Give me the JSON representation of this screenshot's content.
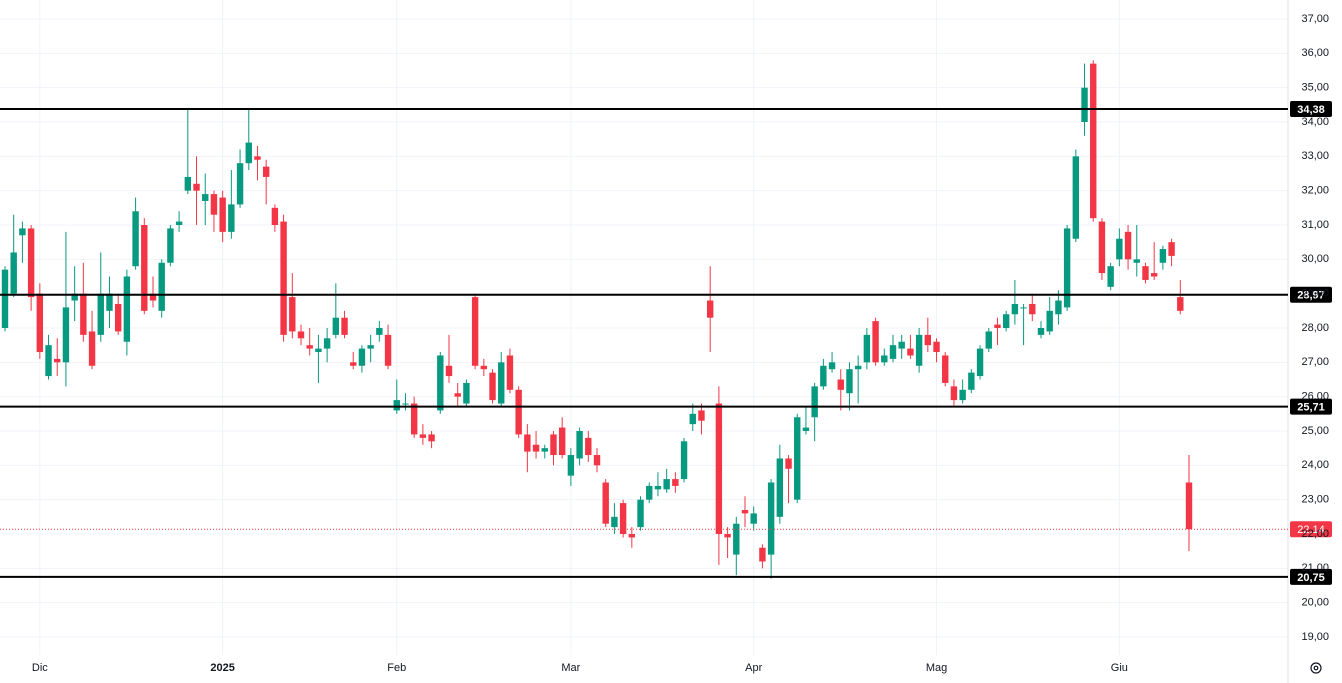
{
  "chart_data": {
    "type": "candlestick",
    "categories": [
      null,
      null,
      null,
      null,
      "Dic",
      null,
      null,
      null,
      null,
      null,
      null,
      null,
      null,
      null,
      null,
      null,
      null,
      null,
      null,
      null,
      null,
      null,
      null,
      null,
      null,
      "2025",
      null,
      null,
      null,
      null,
      null,
      null,
      null,
      null,
      null,
      null,
      null,
      null,
      null,
      null,
      null,
      null,
      null,
      null,
      null,
      "Feb",
      null,
      null,
      null,
      null,
      null,
      null,
      null,
      null,
      null,
      null,
      null,
      null,
      null,
      null,
      null,
      null,
      null,
      null,
      null,
      "Mar",
      null,
      null,
      null,
      null,
      null,
      null,
      null,
      null,
      null,
      null,
      null,
      null,
      null,
      null,
      null,
      null,
      null,
      null,
      null,
      null,
      "Apr",
      null,
      null,
      null,
      null,
      null,
      null,
      null,
      null,
      null,
      null,
      null,
      null,
      null,
      null,
      null,
      null,
      null,
      null,
      null,
      null,
      "Mag",
      null,
      null,
      null,
      null,
      null,
      null,
      null,
      null,
      null,
      null,
      null,
      null,
      null,
      null,
      null,
      null,
      null,
      null,
      null,
      null,
      "Giu",
      null,
      null,
      null,
      null,
      null,
      null,
      null,
      null
    ],
    "open": [
      28.0,
      29.0,
      30.7,
      30.9,
      29.0,
      26.6,
      27.1,
      27.0,
      28.8,
      29.0,
      27.9,
      27.8,
      28.5,
      28.7,
      27.6,
      29.8,
      31.0,
      29.0,
      28.5,
      29.9,
      31.0,
      32.0,
      32.2,
      31.7,
      31.9,
      31.8,
      30.8,
      31.6,
      32.8,
      33.0,
      32.7,
      31.5,
      31.1,
      28.9,
      27.9,
      27.5,
      27.3,
      27.4,
      27.8,
      28.3,
      27.0,
      26.9,
      27.4,
      27.8,
      27.8,
      25.6,
      25.8,
      25.8,
      24.9,
      24.9,
      25.6,
      26.9,
      26.1,
      25.8,
      28.9,
      26.9,
      26.7,
      25.8,
      27.2,
      26.2,
      24.9,
      24.6,
      24.4,
      24.9,
      25.1,
      23.7,
      24.2,
      24.8,
      24.3,
      23.5,
      22.2,
      22.9,
      22.0,
      22.2,
      23.0,
      23.3,
      23.3,
      23.6,
      23.6,
      25.2,
      25.6,
      28.8,
      25.8,
      22.0,
      21.4,
      22.7,
      22.3,
      21.6,
      21.4,
      22.5,
      24.2,
      23.0,
      25.0,
      25.4,
      26.3,
      26.8,
      26.5,
      26.1,
      26.8,
      27.0,
      28.2,
      27.0,
      27.1,
      27.4,
      27.4,
      26.9,
      27.8,
      27.6,
      27.2,
      26.3,
      25.9,
      26.2,
      26.6,
      27.4,
      28.1,
      28.0,
      28.4,
      28.6,
      28.7,
      27.8,
      27.9,
      28.4,
      28.6,
      30.6,
      34.0,
      35.7,
      31.1,
      29.2,
      30.0,
      30.8,
      29.9,
      29.8,
      29.6,
      29.9,
      30.5,
      28.9,
      23.5
    ],
    "high": [
      29.8,
      31.3,
      31.1,
      31.0,
      29.3,
      27.8,
      27.7,
      30.8,
      29.8,
      29.9,
      28.5,
      30.2,
      29.5,
      29.0,
      29.7,
      31.8,
      31.2,
      29.5,
      30.0,
      31.0,
      31.4,
      34.4,
      33.0,
      32.5,
      32.0,
      32.0,
      32.6,
      33.2,
      34.4,
      33.3,
      32.9,
      31.6,
      31.3,
      29.6,
      28.1,
      28.0,
      27.8,
      28.0,
      29.3,
      28.5,
      27.3,
      27.5,
      27.8,
      28.2,
      28.1,
      26.5,
      26.1,
      26.0,
      25.2,
      25.0,
      27.3,
      27.8,
      26.4,
      26.5,
      29.0,
      27.1,
      26.8,
      27.3,
      27.4,
      26.3,
      25.2,
      25.0,
      24.6,
      25.0,
      25.4,
      24.5,
      25.1,
      25.0,
      24.5,
      23.6,
      22.9,
      23.0,
      22.2,
      23.1,
      23.5,
      23.8,
      23.9,
      23.8,
      24.8,
      25.8,
      25.8,
      29.8,
      26.3,
      22.2,
      22.5,
      23.1,
      22.8,
      21.7,
      23.6,
      24.6,
      24.3,
      25.5,
      25.7,
      26.4,
      27.1,
      27.3,
      26.8,
      27.0,
      27.2,
      28.0,
      28.3,
      27.4,
      27.8,
      27.8,
      27.8,
      28.0,
      28.3,
      27.7,
      27.3,
      26.5,
      26.5,
      26.8,
      27.5,
      28.0,
      28.3,
      28.5,
      29.4,
      28.7,
      29.0,
      28.2,
      28.9,
      29.1,
      31.0,
      33.2,
      35.7,
      35.8,
      31.2,
      29.9,
      30.9,
      31.0,
      31.0,
      29.9,
      30.5,
      30.4,
      30.6,
      29.4,
      24.3
    ],
    "low": [
      27.9,
      28.9,
      29.9,
      28.5,
      27.1,
      26.5,
      26.6,
      26.3,
      28.2,
      27.6,
      26.8,
      27.6,
      28.0,
      27.8,
      27.2,
      29.7,
      28.4,
      28.6,
      28.3,
      29.8,
      30.8,
      31.9,
      31.0,
      31.0,
      30.8,
      30.5,
      30.6,
      31.5,
      32.6,
      32.3,
      31.6,
      30.8,
      27.6,
      27.7,
      27.5,
      27.2,
      26.4,
      27.0,
      27.7,
      27.7,
      26.8,
      26.7,
      27.0,
      27.6,
      26.8,
      25.5,
      25.6,
      24.8,
      24.6,
      24.5,
      25.5,
      26.4,
      25.7,
      25.7,
      26.8,
      26.6,
      25.8,
      25.7,
      26.1,
      24.8,
      23.8,
      24.2,
      24.2,
      24.0,
      24.2,
      23.4,
      24.0,
      24.1,
      23.8,
      22.2,
      22.0,
      21.9,
      21.6,
      22.1,
      22.9,
      23.1,
      23.2,
      23.2,
      23.5,
      25.0,
      24.9,
      27.3,
      21.1,
      21.3,
      20.8,
      22.2,
      22.1,
      21.0,
      20.7,
      22.3,
      22.9,
      22.9,
      24.9,
      24.7,
      26.2,
      26.7,
      25.6,
      25.6,
      25.8,
      26.8,
      26.9,
      26.9,
      27.0,
      27.1,
      27.1,
      26.7,
      27.3,
      27.0,
      26.3,
      25.7,
      25.8,
      26.1,
      26.5,
      27.3,
      27.5,
      27.9,
      28.1,
      27.5,
      28.2,
      27.7,
      27.8,
      28.1,
      28.5,
      30.5,
      33.6,
      31.1,
      29.4,
      29.1,
      29.8,
      29.7,
      29.5,
      29.3,
      29.4,
      29.7,
      29.8,
      28.4,
      21.5
    ],
    "close": [
      29.7,
      30.2,
      30.9,
      28.9,
      27.3,
      27.5,
      27.0,
      28.6,
      29.0,
      27.8,
      26.9,
      29.0,
      29.0,
      27.9,
      29.5,
      31.4,
      28.5,
      28.8,
      29.9,
      30.9,
      31.1,
      32.4,
      32.0,
      31.9,
      31.3,
      30.8,
      31.6,
      32.8,
      33.4,
      32.9,
      32.4,
      31.0,
      27.8,
      27.9,
      27.7,
      27.4,
      27.4,
      27.7,
      28.3,
      27.8,
      26.9,
      27.4,
      27.5,
      28.0,
      26.9,
      25.9,
      25.8,
      24.9,
      24.8,
      24.7,
      27.2,
      26.6,
      26.0,
      26.4,
      26.9,
      26.8,
      25.9,
      27.0,
      26.2,
      24.9,
      24.4,
      24.4,
      24.5,
      24.3,
      24.3,
      24.3,
      25.0,
      24.3,
      24.0,
      22.3,
      22.5,
      22.0,
      21.9,
      23.0,
      23.4,
      23.4,
      23.6,
      23.4,
      24.7,
      25.5,
      25.3,
      28.3,
      22.0,
      21.9,
      22.3,
      22.6,
      22.6,
      21.2,
      23.5,
      24.2,
      23.9,
      25.4,
      25.1,
      26.3,
      26.9,
      27.0,
      26.2,
      26.8,
      26.9,
      27.8,
      27.0,
      27.2,
      27.5,
      27.6,
      27.2,
      27.8,
      27.5,
      27.3,
      26.4,
      25.9,
      26.2,
      26.7,
      27.4,
      27.9,
      28.0,
      28.4,
      28.7,
      28.6,
      28.4,
      28.0,
      28.5,
      28.8,
      30.9,
      33.0,
      35.0,
      31.2,
      29.6,
      29.8,
      30.6,
      30.0,
      30.0,
      29.4,
      29.5,
      30.3,
      30.1,
      28.5,
      22.14
    ],
    "up_color": "#089981",
    "down_color": "#f23645",
    "ylim": [
      19,
      37
    ],
    "yticks": [
      {
        "value": 19,
        "label": "19,00"
      },
      {
        "value": 20,
        "label": "20,00"
      },
      {
        "value": 21,
        "label": "21,00"
      },
      {
        "value": 22,
        "label": "22,00"
      },
      {
        "value": 23,
        "label": "23,00"
      },
      {
        "value": 24,
        "label": "24,00"
      },
      {
        "value": 25,
        "label": "25,00"
      },
      {
        "value": 26,
        "label": "26,00"
      },
      {
        "value": 27,
        "label": "27,00"
      },
      {
        "value": 28,
        "label": "28,00"
      },
      {
        "value": 29,
        "label": "29,00"
      },
      {
        "value": 30,
        "label": "30,00"
      },
      {
        "value": 31,
        "label": "31,00"
      },
      {
        "value": 32,
        "label": "32,00"
      },
      {
        "value": 33,
        "label": "33,00"
      },
      {
        "value": 34,
        "label": "34,00"
      },
      {
        "value": 35,
        "label": "35,00"
      },
      {
        "value": 36,
        "label": "36,00"
      },
      {
        "value": 37,
        "label": "37,00"
      }
    ],
    "levels": [
      {
        "value": 34.38,
        "label": "34,38"
      },
      {
        "value": 28.97,
        "label": "28,97"
      },
      {
        "value": 25.71,
        "label": "25,71"
      },
      {
        "value": 20.75,
        "label": "20,75"
      }
    ],
    "last_price": {
      "value": 22.14,
      "label": "22,14"
    },
    "grid": true
  }
}
